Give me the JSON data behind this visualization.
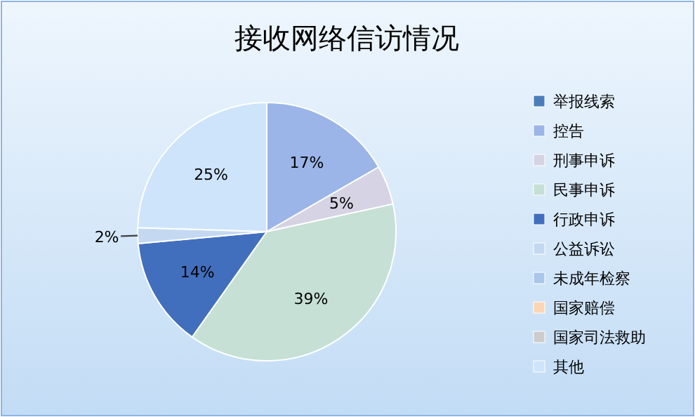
{
  "chart_data": {
    "type": "pie",
    "title": "接收网络信访情况",
    "categories": [
      "举报线索",
      "控告",
      "刑事申诉",
      "民事申诉",
      "行政申诉",
      "公益诉讼",
      "未成年检察",
      "国家赔偿",
      "国家司法救助",
      "其他"
    ],
    "values": [
      0,
      17,
      5,
      39,
      14,
      2,
      0,
      0,
      0,
      25
    ],
    "value_labels": [
      null,
      "17%",
      "5%",
      "39%",
      "14%",
      "2%",
      null,
      null,
      null,
      "25%"
    ],
    "colors": [
      "#4a7ebb",
      "#9bb5e8",
      "#d6d3e4",
      "#c6e0d6",
      "#416fbd",
      "#c4d8f2",
      "#a9c6ea",
      "#fcd5b4",
      "#cccccc",
      "#cde4fb"
    ],
    "legend": "right"
  }
}
